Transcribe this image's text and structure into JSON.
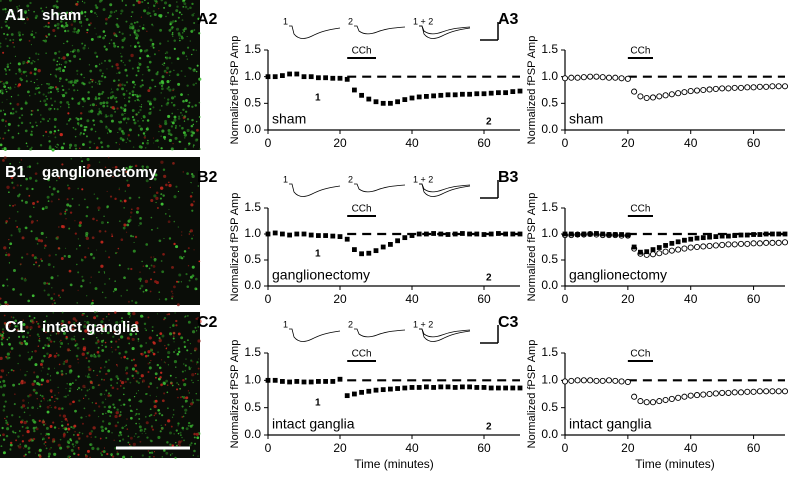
{
  "images": [
    {
      "panel": "A1",
      "label": "sham"
    },
    {
      "panel": "B1",
      "label": "ganglionectomy"
    },
    {
      "panel": "C1",
      "label": "intact ganglia"
    }
  ],
  "chart_data": [
    {
      "type": "scatter",
      "panel": "A2",
      "ylabel": "Normalized fPSP Amp",
      "condition": "sham",
      "stim_label": "CCh",
      "stim_range": [
        22,
        30
      ],
      "reference": 1,
      "trace_labels": [
        "1",
        "2",
        "1 + 2"
      ],
      "point_labels": [
        "1",
        "2"
      ],
      "xlim": [
        0,
        70
      ],
      "ylim": [
        0,
        1.5
      ],
      "xticks": [
        0,
        20,
        40,
        60
      ],
      "yticks": [
        {
          "value": 0,
          "label": "0.0"
        },
        {
          "value": 0.5,
          "label": "0.5"
        },
        {
          "value": 1,
          "label": "1.0"
        },
        {
          "value": 1.5,
          "label": "1.5"
        }
      ],
      "x": [
        0,
        2,
        4,
        6,
        8,
        10,
        12,
        14,
        16,
        18,
        20,
        22,
        24,
        26,
        28,
        30,
        32,
        34,
        36,
        38,
        40,
        42,
        44,
        46,
        48,
        50,
        52,
        54,
        56,
        58,
        60,
        62,
        64,
        66,
        68,
        70
      ],
      "series": [
        {
          "marker": "square-filled",
          "color": "#000000",
          "values": [
            1.0,
            1.0,
            1.02,
            1.05,
            1.05,
            1.0,
            1.0,
            0.98,
            0.98,
            0.97,
            0.97,
            0.95,
            0.75,
            0.65,
            0.58,
            0.53,
            0.5,
            0.5,
            0.53,
            0.57,
            0.6,
            0.62,
            0.63,
            0.64,
            0.65,
            0.66,
            0.66,
            0.67,
            0.67,
            0.68,
            0.68,
            0.69,
            0.7,
            0.7,
            0.72,
            0.73
          ]
        }
      ]
    },
    {
      "type": "scatter",
      "panel": "A3",
      "ylabel": "Normalized fPSP Amp",
      "condition": "sham",
      "stim_label": "CCh",
      "stim_range": [
        20,
        28
      ],
      "reference": 1,
      "xlim": [
        0,
        70
      ],
      "ylim": [
        0,
        1.5
      ],
      "xticks": [
        0,
        20,
        40,
        60
      ],
      "yticks": [
        {
          "value": 0,
          "label": "0.0"
        },
        {
          "value": 0.5,
          "label": "0.5"
        },
        {
          "value": 1,
          "label": "1.0"
        },
        {
          "value": 1.5,
          "label": "1.5"
        }
      ],
      "x": [
        0,
        2,
        4,
        6,
        8,
        10,
        12,
        14,
        16,
        18,
        20,
        22,
        24,
        26,
        28,
        30,
        32,
        34,
        36,
        38,
        40,
        42,
        44,
        46,
        48,
        50,
        52,
        54,
        56,
        58,
        60,
        62,
        64,
        66,
        68,
        70
      ],
      "series": [
        {
          "marker": "circle-open",
          "color": "#000000",
          "values": [
            0.97,
            0.98,
            0.98,
            0.99,
            1.0,
            1.0,
            0.99,
            0.98,
            0.98,
            0.97,
            0.96,
            0.72,
            0.63,
            0.6,
            0.61,
            0.63,
            0.65,
            0.67,
            0.69,
            0.71,
            0.73,
            0.74,
            0.75,
            0.76,
            0.77,
            0.78,
            0.78,
            0.79,
            0.79,
            0.8,
            0.8,
            0.81,
            0.81,
            0.82,
            0.82,
            0.82
          ]
        }
      ]
    },
    {
      "type": "scatter",
      "panel": "B2",
      "ylabel": "Normalized fPSP Amp",
      "condition": "ganglionectomy",
      "stim_label": "CCh",
      "stim_range": [
        22,
        30
      ],
      "reference": 1,
      "trace_labels": [
        "1",
        "2",
        "1 + 2"
      ],
      "point_labels": [
        "1",
        "2"
      ],
      "xlim": [
        0,
        70
      ],
      "ylim": [
        0,
        1.5
      ],
      "xticks": [
        0,
        20,
        40,
        60
      ],
      "yticks": [
        {
          "value": 0,
          "label": "0.0"
        },
        {
          "value": 0.5,
          "label": "0.5"
        },
        {
          "value": 1,
          "label": "1.0"
        },
        {
          "value": 1.5,
          "label": "1.5"
        }
      ],
      "x": [
        0,
        2,
        4,
        6,
        8,
        10,
        12,
        14,
        16,
        18,
        20,
        22,
        24,
        26,
        28,
        30,
        32,
        34,
        36,
        38,
        40,
        42,
        44,
        46,
        48,
        50,
        52,
        54,
        56,
        58,
        60,
        62,
        64,
        66,
        68,
        70
      ],
      "series": [
        {
          "marker": "square-filled",
          "color": "#000000",
          "values": [
            1.0,
            1.02,
            1.0,
            0.98,
            1.0,
            1.0,
            0.98,
            0.97,
            0.97,
            0.96,
            0.95,
            0.9,
            0.7,
            0.62,
            0.63,
            0.68,
            0.75,
            0.8,
            0.87,
            0.93,
            0.97,
            1.0,
            1.0,
            1.01,
            1.0,
            0.99,
            1.0,
            1.01,
            1.0,
            1.0,
            0.99,
            1.0,
            1.01,
            1.0,
            1.0,
            1.0
          ]
        }
      ]
    },
    {
      "type": "scatter",
      "panel": "B3",
      "ylabel": "Normalized fPSP Amp",
      "condition": "ganglionectomy",
      "stim_label": "CCh",
      "stim_range": [
        20,
        28
      ],
      "reference": 1,
      "xlim": [
        0,
        70
      ],
      "ylim": [
        0,
        1.5
      ],
      "xticks": [
        0,
        20,
        40,
        60
      ],
      "yticks": [
        {
          "value": 0,
          "label": "0.0"
        },
        {
          "value": 0.5,
          "label": "0.5"
        },
        {
          "value": 1,
          "label": "1.0"
        },
        {
          "value": 1.5,
          "label": "1.5"
        }
      ],
      "x": [
        0,
        2,
        4,
        6,
        8,
        10,
        12,
        14,
        16,
        18,
        20,
        22,
        24,
        26,
        28,
        30,
        32,
        34,
        36,
        38,
        40,
        42,
        44,
        46,
        48,
        50,
        52,
        54,
        56,
        58,
        60,
        62,
        64,
        66,
        68,
        70
      ],
      "series": [
        {
          "marker": "circle-open",
          "color": "#000000",
          "values": [
            0.98,
            0.98,
            0.99,
            0.99,
            1.0,
            0.99,
            0.98,
            0.98,
            0.98,
            0.97,
            0.97,
            0.72,
            0.62,
            0.6,
            0.61,
            0.63,
            0.66,
            0.68,
            0.7,
            0.72,
            0.74,
            0.75,
            0.76,
            0.77,
            0.78,
            0.79,
            0.8,
            0.8,
            0.81,
            0.81,
            0.82,
            0.82,
            0.83,
            0.83,
            0.83,
            0.84
          ]
        },
        {
          "marker": "square-filled",
          "color": "#000000",
          "values": [
            1.0,
            1.0,
            0.99,
            1.0,
            1.0,
            1.01,
            1.0,
            0.99,
            0.99,
            0.99,
            0.98,
            0.75,
            0.65,
            0.66,
            0.7,
            0.74,
            0.78,
            0.82,
            0.85,
            0.88,
            0.9,
            0.92,
            0.93,
            0.94,
            0.95,
            0.96,
            0.96,
            0.97,
            0.98,
            0.98,
            0.99,
            0.99,
            1.0,
            1.0,
            1.0,
            1.0
          ]
        }
      ]
    },
    {
      "type": "scatter",
      "panel": "C2",
      "ylabel": "Normalized fPSP Amp",
      "xlabel": "Time (minutes)",
      "condition": "intact ganglia",
      "stim_label": "CCh",
      "stim_range": [
        22,
        30
      ],
      "reference": 1,
      "trace_labels": [
        "1",
        "2",
        "1 + 2"
      ],
      "point_labels": [
        "1",
        "2"
      ],
      "xlim": [
        0,
        70
      ],
      "ylim": [
        0,
        1.5
      ],
      "xticks": [
        0,
        20,
        40,
        60
      ],
      "yticks": [
        {
          "value": 0,
          "label": "0.0"
        },
        {
          "value": 0.5,
          "label": "0.5"
        },
        {
          "value": 1,
          "label": "1.0"
        },
        {
          "value": 1.5,
          "label": "1.5"
        }
      ],
      "x": [
        0,
        2,
        4,
        6,
        8,
        10,
        12,
        14,
        16,
        18,
        20,
        22,
        24,
        26,
        28,
        30,
        32,
        34,
        36,
        38,
        40,
        42,
        44,
        46,
        48,
        50,
        52,
        54,
        56,
        58,
        60,
        62,
        64,
        66,
        68,
        70
      ],
      "series": [
        {
          "marker": "square-filled",
          "color": "#000000",
          "values": [
            1.0,
            1.0,
            0.98,
            0.97,
            0.98,
            0.97,
            0.97,
            0.98,
            0.98,
            0.98,
            1.02,
            0.72,
            0.75,
            0.78,
            0.8,
            0.82,
            0.83,
            0.84,
            0.85,
            0.86,
            0.87,
            0.87,
            0.88,
            0.87,
            0.88,
            0.88,
            0.87,
            0.88,
            0.88,
            0.87,
            0.87,
            0.86,
            0.86,
            0.86,
            0.86,
            0.86
          ]
        }
      ]
    },
    {
      "type": "scatter",
      "panel": "C3",
      "ylabel": "Normalized fPSP Amp",
      "xlabel": "Time (minutes)",
      "condition": "intact ganglia",
      "stim_label": "CCh",
      "stim_range": [
        20,
        28
      ],
      "reference": 1,
      "xlim": [
        0,
        70
      ],
      "ylim": [
        0,
        1.5
      ],
      "xticks": [
        0,
        20,
        40,
        60
      ],
      "yticks": [
        {
          "value": 0,
          "label": "0.0"
        },
        {
          "value": 0.5,
          "label": "0.5"
        },
        {
          "value": 1,
          "label": "1.0"
        },
        {
          "value": 1.5,
          "label": "1.5"
        }
      ],
      "x": [
        0,
        2,
        4,
        6,
        8,
        10,
        12,
        14,
        16,
        18,
        20,
        22,
        24,
        26,
        28,
        30,
        32,
        34,
        36,
        38,
        40,
        42,
        44,
        46,
        48,
        50,
        52,
        54,
        56,
        58,
        60,
        62,
        64,
        66,
        68,
        70
      ],
      "series": [
        {
          "marker": "circle-open",
          "color": "#000000",
          "values": [
            0.98,
            0.99,
            1.0,
            1.0,
            1.0,
            0.99,
            0.99,
            1.0,
            0.99,
            0.98,
            0.97,
            0.7,
            0.62,
            0.6,
            0.6,
            0.62,
            0.64,
            0.66,
            0.68,
            0.7,
            0.72,
            0.73,
            0.74,
            0.75,
            0.76,
            0.77,
            0.77,
            0.78,
            0.78,
            0.79,
            0.79,
            0.8,
            0.8,
            0.8,
            0.8,
            0.8
          ]
        }
      ]
    }
  ]
}
